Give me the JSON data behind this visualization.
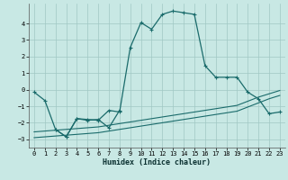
{
  "xlabel": "Humidex (Indice chaleur)",
  "background_color": "#c8e8e4",
  "grid_color": "#a0c8c4",
  "line_color": "#1a6b6b",
  "xlim": [
    -0.5,
    23.5
  ],
  "ylim": [
    -3.5,
    5.2
  ],
  "xticks": [
    0,
    1,
    2,
    3,
    4,
    5,
    6,
    7,
    8,
    9,
    10,
    11,
    12,
    13,
    14,
    15,
    16,
    17,
    18,
    19,
    20,
    21,
    22,
    23
  ],
  "yticks": [
    -3,
    -2,
    -1,
    0,
    1,
    2,
    3,
    4
  ],
  "line1_x": [
    0,
    1,
    2,
    3,
    4,
    5,
    6,
    7,
    8,
    9,
    10,
    11,
    12,
    13,
    14,
    15,
    16,
    17,
    18,
    19,
    20,
    21,
    22,
    23
  ],
  "line1_y": [
    -0.15,
    -0.65,
    -2.4,
    -2.85,
    -1.75,
    -1.8,
    -1.85,
    -1.25,
    -1.35,
    2.55,
    4.05,
    3.65,
    4.55,
    4.75,
    4.65,
    4.55,
    1.45,
    0.75,
    0.75,
    0.75,
    -0.15,
    -0.55,
    -1.45,
    -1.35
  ],
  "line2_x": [
    0,
    1,
    2,
    3,
    4,
    5,
    6,
    7,
    8,
    9,
    10,
    11,
    12,
    13,
    14,
    15,
    16,
    17,
    18,
    19,
    20,
    21,
    22,
    23
  ],
  "line2_y": [
    -2.55,
    -2.5,
    -2.45,
    -2.4,
    -2.35,
    -2.3,
    -2.25,
    -2.15,
    -2.05,
    -1.95,
    -1.85,
    -1.75,
    -1.65,
    -1.55,
    -1.45,
    -1.35,
    -1.25,
    -1.15,
    -1.05,
    -0.95,
    -0.7,
    -0.45,
    -0.25,
    -0.05
  ],
  "line3_x": [
    0,
    1,
    2,
    3,
    4,
    5,
    6,
    7,
    8,
    9,
    10,
    11,
    12,
    13,
    14,
    15,
    16,
    17,
    18,
    19,
    20,
    21,
    22,
    23
  ],
  "line3_y": [
    -2.9,
    -2.85,
    -2.8,
    -2.75,
    -2.7,
    -2.65,
    -2.6,
    -2.5,
    -2.4,
    -2.3,
    -2.2,
    -2.1,
    -2.0,
    -1.9,
    -1.8,
    -1.7,
    -1.6,
    -1.5,
    -1.4,
    -1.3,
    -1.05,
    -0.8,
    -0.55,
    -0.35
  ],
  "line4_x": [
    2,
    3,
    4,
    5,
    6,
    7,
    8
  ],
  "line4_y": [
    -2.4,
    -2.85,
    -1.75,
    -1.85,
    -1.8,
    -2.3,
    -1.25
  ]
}
